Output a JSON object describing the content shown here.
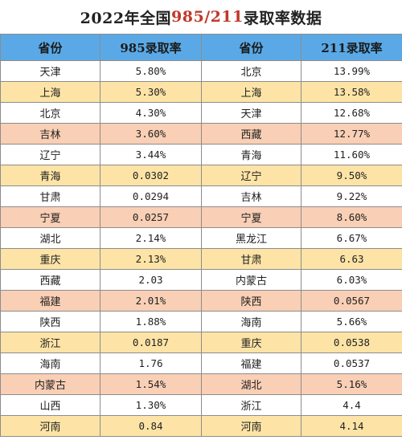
{
  "title": {
    "prefix": "2022年全国",
    "highlight": "985/211",
    "suffix": "录取率数据"
  },
  "headers": {
    "province_a": "省份",
    "rate985": "985录取率",
    "province_b": "省份",
    "rate211": "211录取率"
  },
  "rows": [
    {
      "p1": "天津",
      "v1": "5.80%",
      "p2": "北京",
      "v2": "13.99%"
    },
    {
      "p1": "上海",
      "v1": "5.30%",
      "p2": "上海",
      "v2": "13.58%"
    },
    {
      "p1": "北京",
      "v1": "4.30%",
      "p2": "天津",
      "v2": "12.68%"
    },
    {
      "p1": "吉林",
      "v1": "3.60%",
      "p2": "西藏",
      "v2": "12.77%"
    },
    {
      "p1": "辽宁",
      "v1": "3.44%",
      "p2": "青海",
      "v2": "11.60%"
    },
    {
      "p1": "青海",
      "v1": "0.0302",
      "p2": "辽宁",
      "v2": "9.50%"
    },
    {
      "p1": "甘肃",
      "v1": "0.0294",
      "p2": "吉林",
      "v2": "9.22%"
    },
    {
      "p1": "宁夏",
      "v1": "0.0257",
      "p2": "宁夏",
      "v2": "8.60%"
    },
    {
      "p1": "湖北",
      "v1": "2.14%",
      "p2": "黑龙江",
      "v2": "6.67%"
    },
    {
      "p1": "重庆",
      "v1": "2.13%",
      "p2": "甘肃",
      "v2": "6.63"
    },
    {
      "p1": "西藏",
      "v1": "2.03",
      "p2": "内蒙古",
      "v2": "6.03%"
    },
    {
      "p1": "福建",
      "v1": "2.01%",
      "p2": "陕西",
      "v2": "0.0567"
    },
    {
      "p1": "陕西",
      "v1": "1.88%",
      "p2": "海南",
      "v2": "5.66%"
    },
    {
      "p1": "浙江",
      "v1": "0.0187",
      "p2": "重庆",
      "v2": "0.0538"
    },
    {
      "p1": "海南",
      "v1": "1.76",
      "p2": "福建",
      "v2": "0.0537"
    },
    {
      "p1": "内蒙古",
      "v1": "1.54%",
      "p2": "湖北",
      "v2": "5.16%"
    },
    {
      "p1": "山西",
      "v1": "1.30%",
      "p2": "浙江",
      "v2": "4.4"
    },
    {
      "p1": "河南",
      "v1": "0.84",
      "p2": "河南",
      "v2": "4.14"
    }
  ],
  "row_styles": [
    "white",
    "yellow",
    "white",
    "peach",
    "white",
    "yellow",
    "white",
    "peach",
    "white",
    "yellow",
    "white",
    "peach",
    "white",
    "yellow",
    "white",
    "peach",
    "white",
    "yellow"
  ],
  "colors": {
    "header_bg": "#5aa9e6",
    "yellow_row": "#fde4a6",
    "peach_row": "#f9cfb5",
    "title_highlight": "#c0392b"
  }
}
